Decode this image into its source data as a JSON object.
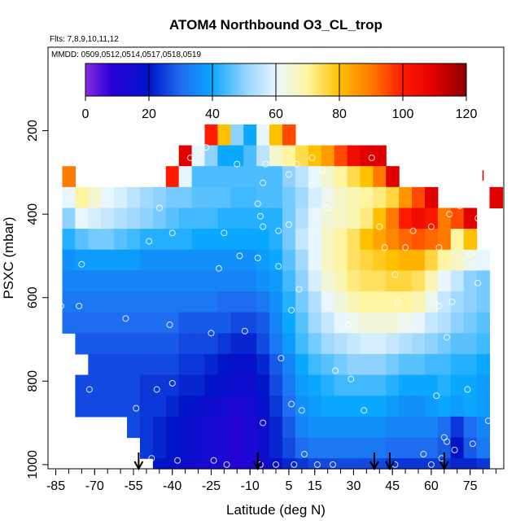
{
  "chart_data": {
    "type": "heatmap",
    "title": "ATOM4 Northbound O3_CL_trop",
    "subtitle_flights": "Flts: 7,8,9,10,11,12",
    "subtitle_dates": "MMDD: 0509,0512,0514,0517,0518,0519",
    "xlabel": "Latitude (deg N)",
    "ylabel": "PSXC (mbar)",
    "xlim": [
      -88,
      88
    ],
    "ylim": [
      1010,
      0
    ],
    "x_tick_labels": [
      "-85",
      "-70",
      "-55",
      "-40",
      "-25",
      "-10",
      "5",
      "15",
      "30",
      "45",
      "60",
      "75"
    ],
    "x_tick_values": [
      -85,
      -70,
      -55,
      -40,
      -25,
      -10,
      5,
      15,
      30,
      45,
      60,
      75
    ],
    "y_tick_labels": [
      "200",
      "400",
      "600",
      "800",
      "1000"
    ],
    "y_tick_values": [
      200,
      400,
      600,
      800,
      1000
    ],
    "colorbar": {
      "min": 0,
      "max": 120,
      "tick_labels": [
        "0",
        "20",
        "40",
        "60",
        "80",
        "100",
        "120"
      ],
      "tick_values": [
        0,
        20,
        40,
        60,
        80,
        100,
        120
      ],
      "stops": [
        {
          "v": 0,
          "c": "#8a2be2"
        },
        {
          "v": 8,
          "c": "#2a00d8"
        },
        {
          "v": 20,
          "c": "#0014c8"
        },
        {
          "v": 30,
          "c": "#1e6cf0"
        },
        {
          "v": 40,
          "c": "#0aa8ff"
        },
        {
          "v": 50,
          "c": "#90d2ff"
        },
        {
          "v": 60,
          "c": "#e8f6ff"
        },
        {
          "v": 70,
          "c": "#fff5a0"
        },
        {
          "v": 80,
          "c": "#ffc000"
        },
        {
          "v": 90,
          "c": "#ff7a00"
        },
        {
          "v": 100,
          "c": "#ff1a00"
        },
        {
          "v": 110,
          "c": "#e00000"
        },
        {
          "v": 120,
          "c": "#8b0000"
        }
      ]
    },
    "pressure_band_edges_mbar": [
      185,
      235,
      285,
      335,
      385,
      435,
      485,
      535,
      585,
      635,
      685,
      735,
      785,
      835,
      885,
      935,
      985,
      1010
    ],
    "lat_columns_deg": [
      -85,
      -80,
      -75,
      -70,
      -65,
      -60,
      -55,
      -50,
      -45,
      -40,
      -35,
      -30,
      -25,
      -20,
      -15,
      -10,
      -5,
      0,
      5,
      10,
      15,
      20,
      25,
      30,
      35,
      40,
      45,
      50,
      55,
      60,
      65,
      70,
      75,
      80,
      85
    ],
    "column_width_deg": 5,
    "o3_ppbv_grid": [
      [
        null,
        null,
        null,
        null,
        null,
        null,
        null,
        null,
        null,
        null,
        null,
        null,
        100,
        80,
        50,
        40,
        60,
        80,
        95,
        null,
        null,
        null,
        null,
        null,
        null,
        null,
        null,
        null,
        null,
        null,
        null,
        null,
        null,
        null,
        null
      ],
      [
        null,
        null,
        null,
        null,
        null,
        null,
        null,
        null,
        null,
        null,
        110,
        60,
        50,
        40,
        40,
        45,
        55,
        65,
        70,
        75,
        80,
        85,
        95,
        105,
        110,
        110,
        null,
        null,
        null,
        null,
        null,
        null,
        null,
        null,
        null
      ],
      [
        null,
        90,
        null,
        null,
        null,
        null,
        null,
        null,
        null,
        100,
        60,
        45,
        45,
        45,
        45,
        45,
        45,
        45,
        50,
        55,
        60,
        65,
        70,
        75,
        80,
        90,
        110,
        null,
        null,
        null,
        null,
        null,
        null,
        null,
        null
      ],
      [
        null,
        60,
        70,
        65,
        60,
        58,
        55,
        52,
        50,
        48,
        48,
        46,
        46,
        46,
        44,
        44,
        45,
        45,
        48,
        52,
        58,
        62,
        66,
        68,
        70,
        72,
        76,
        86,
        95,
        110,
        null,
        null,
        null,
        null,
        110
      ],
      [
        null,
        50,
        60,
        58,
        56,
        54,
        52,
        50,
        48,
        46,
        44,
        44,
        44,
        42,
        42,
        42,
        42,
        42,
        48,
        54,
        60,
        64,
        66,
        68,
        72,
        80,
        90,
        100,
        105,
        102,
        90,
        95,
        110,
        null,
        null
      ],
      [
        null,
        42,
        46,
        48,
        48,
        46,
        44,
        42,
        42,
        42,
        42,
        40,
        40,
        40,
        40,
        40,
        40,
        42,
        48,
        56,
        60,
        66,
        70,
        74,
        80,
        84,
        88,
        92,
        94,
        92,
        90,
        70,
        80,
        null,
        null
      ],
      [
        null,
        36,
        38,
        38,
        38,
        38,
        38,
        36,
        36,
        36,
        36,
        36,
        36,
        36,
        36,
        36,
        38,
        40,
        46,
        52,
        60,
        66,
        70,
        74,
        76,
        78,
        80,
        82,
        82,
        76,
        70,
        66,
        62,
        60,
        null
      ],
      [
        null,
        34,
        34,
        34,
        34,
        34,
        34,
        34,
        34,
        34,
        34,
        34,
        34,
        34,
        34,
        34,
        36,
        38,
        44,
        50,
        58,
        64,
        68,
        72,
        74,
        74,
        76,
        76,
        74,
        68,
        60,
        56,
        50,
        48,
        null
      ],
      [
        null,
        32,
        32,
        32,
        32,
        32,
        32,
        32,
        32,
        32,
        32,
        32,
        32,
        30,
        30,
        30,
        32,
        36,
        42,
        48,
        54,
        60,
        64,
        68,
        70,
        70,
        70,
        70,
        68,
        62,
        56,
        52,
        50,
        48,
        null
      ],
      [
        null,
        30,
        30,
        30,
        30,
        30,
        30,
        30,
        30,
        30,
        28,
        28,
        28,
        28,
        26,
        26,
        28,
        34,
        40,
        46,
        52,
        56,
        60,
        62,
        64,
        64,
        64,
        62,
        60,
        56,
        54,
        50,
        48,
        46,
        null
      ],
      [
        null,
        null,
        28,
        28,
        28,
        28,
        28,
        28,
        28,
        28,
        26,
        26,
        26,
        24,
        22,
        22,
        26,
        32,
        38,
        44,
        48,
        52,
        54,
        56,
        58,
        58,
        56,
        54,
        52,
        50,
        48,
        46,
        46,
        44,
        null
      ],
      [
        null,
        null,
        null,
        26,
        26,
        26,
        26,
        26,
        26,
        26,
        24,
        24,
        22,
        20,
        18,
        18,
        22,
        28,
        34,
        40,
        44,
        46,
        48,
        50,
        50,
        50,
        48,
        46,
        46,
        44,
        44,
        42,
        42,
        40,
        null
      ],
      [
        null,
        null,
        26,
        26,
        26,
        26,
        26,
        24,
        24,
        24,
        22,
        22,
        20,
        18,
        16,
        16,
        20,
        26,
        32,
        38,
        40,
        42,
        44,
        44,
        44,
        44,
        42,
        40,
        40,
        40,
        42,
        40,
        40,
        38,
        null
      ],
      [
        null,
        null,
        26,
        26,
        26,
        26,
        26,
        24,
        24,
        22,
        20,
        18,
        16,
        14,
        12,
        14,
        18,
        24,
        30,
        36,
        38,
        40,
        40,
        40,
        40,
        40,
        38,
        36,
        36,
        38,
        40,
        38,
        40,
        38,
        null
      ],
      [
        null,
        null,
        null,
        null,
        null,
        null,
        26,
        24,
        22,
        20,
        18,
        16,
        14,
        12,
        10,
        12,
        16,
        22,
        28,
        34,
        36,
        36,
        36,
        36,
        36,
        36,
        34,
        34,
        34,
        34,
        30,
        24,
        30,
        34,
        null
      ],
      [
        null,
        null,
        null,
        null,
        null,
        null,
        null,
        24,
        22,
        20,
        18,
        16,
        14,
        12,
        10,
        12,
        16,
        22,
        26,
        30,
        32,
        32,
        32,
        32,
        32,
        32,
        30,
        30,
        30,
        30,
        28,
        20,
        28,
        32,
        null
      ],
      [
        null,
        null,
        null,
        null,
        null,
        null,
        null,
        null,
        20,
        18,
        16,
        14,
        12,
        12,
        10,
        12,
        14,
        18,
        22,
        24,
        26,
        26,
        26,
        26,
        26,
        26,
        24,
        24,
        24,
        24,
        24,
        22,
        22,
        24,
        null
      ]
    ],
    "thin_columns": [
      {
        "lat": 80,
        "p_top": 295,
        "p_bot": 320,
        "value": 110,
        "width_deg": 0.5
      }
    ],
    "sample_points": [
      {
        "lat": -86,
        "p": 290
      },
      {
        "lat": -84,
        "p": 480
      },
      {
        "lat": -83,
        "p": 620
      },
      {
        "lat": -76,
        "p": 620
      },
      {
        "lat": -75,
        "p": 520
      },
      {
        "lat": -72,
        "p": 820
      },
      {
        "lat": -58,
        "p": 650
      },
      {
        "lat": -55,
        "p": 950
      },
      {
        "lat": -54,
        "p": 865
      },
      {
        "lat": -51,
        "p": 320
      },
      {
        "lat": -49,
        "p": 465
      },
      {
        "lat": -48,
        "p": 985
      },
      {
        "lat": -46,
        "p": 820
      },
      {
        "lat": -45,
        "p": 385
      },
      {
        "lat": -41,
        "p": 665
      },
      {
        "lat": -40,
        "p": 805
      },
      {
        "lat": -40,
        "p": 445
      },
      {
        "lat": -38,
        "p": 990
      },
      {
        "lat": -33,
        "p": 265
      },
      {
        "lat": -30,
        "p": 255
      },
      {
        "lat": -27,
        "p": 240
      },
      {
        "lat": -25,
        "p": 685
      },
      {
        "lat": -24,
        "p": 990
      },
      {
        "lat": -22,
        "p": 530
      },
      {
        "lat": -20,
        "p": 445
      },
      {
        "lat": -19,
        "p": 1000
      },
      {
        "lat": -15,
        "p": 280
      },
      {
        "lat": -14,
        "p": 500
      },
      {
        "lat": -12,
        "p": 680
      },
      {
        "lat": -6,
        "p": 1000
      },
      {
        "lat": -7,
        "p": 505
      },
      {
        "lat": -7,
        "p": 375
      },
      {
        "lat": -6,
        "p": 405
      },
      {
        "lat": -5,
        "p": 430
      },
      {
        "lat": -5,
        "p": 325
      },
      {
        "lat": -5,
        "p": 900
      },
      {
        "lat": -4,
        "p": 280
      },
      {
        "lat": 0,
        "p": 1000
      },
      {
        "lat": 1,
        "p": 525
      },
      {
        "lat": 1,
        "p": 440
      },
      {
        "lat": 2,
        "p": 745
      },
      {
        "lat": 5,
        "p": 305
      },
      {
        "lat": 5,
        "p": 425
      },
      {
        "lat": 6,
        "p": 630
      },
      {
        "lat": 6,
        "p": 855
      },
      {
        "lat": 7,
        "p": 1000
      },
      {
        "lat": 8,
        "p": 280
      },
      {
        "lat": 9,
        "p": 580
      },
      {
        "lat": 10,
        "p": 870
      },
      {
        "lat": 11,
        "p": 975
      },
      {
        "lat": 14,
        "p": 265
      },
      {
        "lat": 14,
        "p": 330
      },
      {
        "lat": 16,
        "p": 1000
      },
      {
        "lat": 18,
        "p": 295
      },
      {
        "lat": 20,
        "p": 385
      },
      {
        "lat": 22,
        "p": 1000
      },
      {
        "lat": 23,
        "p": 775
      },
      {
        "lat": 28,
        "p": 665
      },
      {
        "lat": 29,
        "p": 795
      },
      {
        "lat": 34,
        "p": 870
      },
      {
        "lat": 37,
        "p": 265
      },
      {
        "lat": 40,
        "p": 430
      },
      {
        "lat": 42,
        "p": 480
      },
      {
        "lat": 46,
        "p": 1000
      },
      {
        "lat": 46,
        "p": 545
      },
      {
        "lat": 47,
        "p": 610
      },
      {
        "lat": 50,
        "p": 480
      },
      {
        "lat": 51,
        "p": 300
      },
      {
        "lat": 53,
        "p": 440
      },
      {
        "lat": 55,
        "p": 300
      },
      {
        "lat": 57,
        "p": 300
      },
      {
        "lat": 57,
        "p": 975
      },
      {
        "lat": 60,
        "p": 430
      },
      {
        "lat": 60,
        "p": 1000
      },
      {
        "lat": 62,
        "p": 835
      },
      {
        "lat": 63,
        "p": 620
      },
      {
        "lat": 63,
        "p": 480
      },
      {
        "lat": 64,
        "p": 985
      },
      {
        "lat": 65,
        "p": 935
      },
      {
        "lat": 66,
        "p": 945
      },
      {
        "lat": 66,
        "p": 695
      },
      {
        "lat": 67,
        "p": 400
      },
      {
        "lat": 68,
        "p": 610
      },
      {
        "lat": 69,
        "p": 965
      },
      {
        "lat": 71,
        "p": 380
      },
      {
        "lat": 74,
        "p": 280
      },
      {
        "lat": 74,
        "p": 820
      },
      {
        "lat": 75,
        "p": 495
      },
      {
        "lat": 76,
        "p": 950
      },
      {
        "lat": 78,
        "p": 410
      },
      {
        "lat": 78,
        "p": 565
      },
      {
        "lat": 80,
        "p": 360
      },
      {
        "lat": 82,
        "p": 295
      },
      {
        "lat": 82,
        "p": 895
      },
      {
        "lat": 84,
        "p": 940
      },
      {
        "lat": 85,
        "p": 985
      }
    ],
    "profile_markers_lat": [
      -53,
      -7,
      38,
      44,
      65
    ]
  }
}
